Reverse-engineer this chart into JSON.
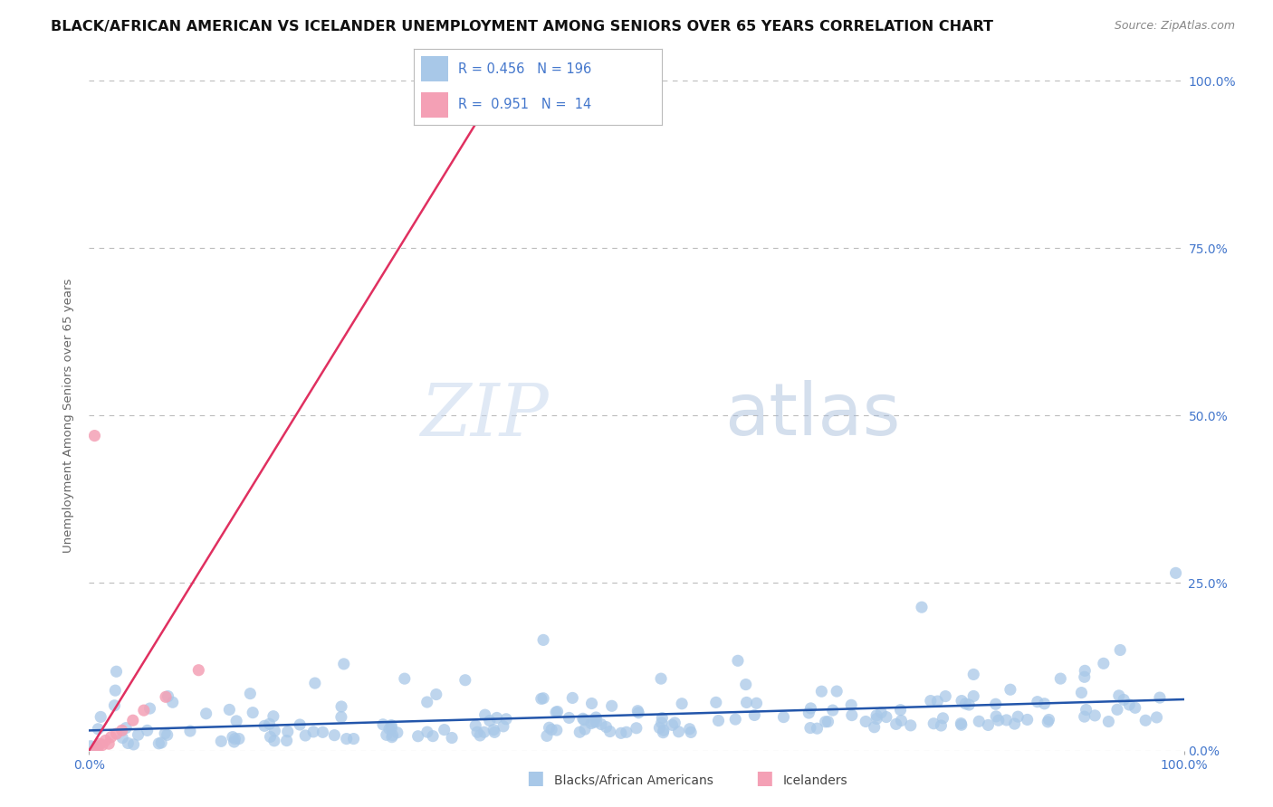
{
  "title": "BLACK/AFRICAN AMERICAN VS ICELANDER UNEMPLOYMENT AMONG SENIORS OVER 65 YEARS CORRELATION CHART",
  "source": "Source: ZipAtlas.com",
  "ylabel": "Unemployment Among Seniors over 65 years",
  "xlim": [
    0.0,
    1.0
  ],
  "ylim": [
    0.0,
    1.0
  ],
  "ytick_labels": [
    "0.0%",
    "25.0%",
    "50.0%",
    "75.0%",
    "100.0%"
  ],
  "ytick_positions": [
    0.0,
    0.25,
    0.5,
    0.75,
    1.0
  ],
  "watermark_zip": "ZIP",
  "watermark_atlas": "atlas",
  "blue_color": "#A8C8E8",
  "pink_color": "#F4A0B5",
  "blue_line_color": "#2255AA",
  "pink_line_color": "#E03060",
  "blue_R": 0.456,
  "blue_N": 196,
  "pink_R": 0.951,
  "pink_N": 14,
  "title_fontsize": 11.5,
  "source_fontsize": 9,
  "background_color": "#FFFFFF",
  "grid_color": "#BBBBBB",
  "axis_label_color": "#4477CC",
  "legend_text_color": "#4477CC",
  "legend_label_blue": "Blacks/African Americans",
  "legend_label_pink": "Icelanders"
}
